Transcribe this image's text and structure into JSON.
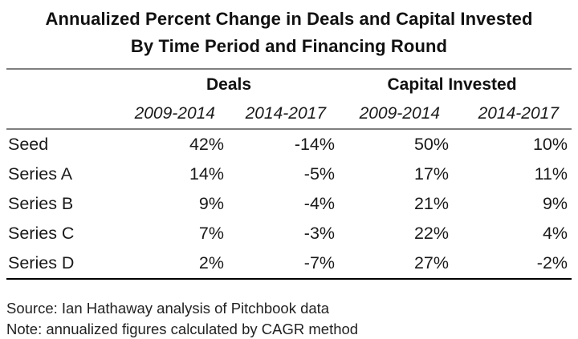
{
  "title": {
    "line1": "Annualized Percent Change in Deals and Capital Invested",
    "line2": "By Time Period and Financing Round"
  },
  "table": {
    "group_headers": {
      "deals": "Deals",
      "capital": "Capital Invested"
    },
    "period_headers": [
      "2009-2014",
      "2014-2017",
      "2009-2014",
      "2014-2017"
    ],
    "rows": [
      {
        "label": "Seed",
        "values": [
          "42%",
          "-14%",
          "50%",
          "10%"
        ]
      },
      {
        "label": "Series A",
        "values": [
          "14%",
          "-5%",
          "17%",
          "11%"
        ]
      },
      {
        "label": "Series B",
        "values": [
          "9%",
          "-4%",
          "21%",
          "9%"
        ]
      },
      {
        "label": "Series C",
        "values": [
          "7%",
          "-3%",
          "22%",
          "4%"
        ]
      },
      {
        "label": "Series D",
        "values": [
          "2%",
          "-7%",
          "27%",
          "-2%"
        ]
      }
    ]
  },
  "footer": {
    "source": "Source: Ian Hathaway analysis of Pitchbook data",
    "note": "Note: annualized figures calculated by CAGR method"
  },
  "chart_data": {
    "type": "table",
    "title": "Annualized Percent Change in Deals and Capital Invested By Time Period and Financing Round",
    "column_groups": [
      "Deals",
      "Capital Invested"
    ],
    "columns": [
      "Deals 2009-2014",
      "Deals 2014-2017",
      "Capital Invested 2009-2014",
      "Capital Invested 2014-2017"
    ],
    "row_labels": [
      "Seed",
      "Series A",
      "Series B",
      "Series C",
      "Series D"
    ],
    "values_percent": [
      [
        42,
        -14,
        50,
        10
      ],
      [
        14,
        -5,
        17,
        11
      ],
      [
        9,
        -4,
        21,
        9
      ],
      [
        7,
        -3,
        22,
        4
      ],
      [
        2,
        -7,
        27,
        -2
      ]
    ],
    "source": "Ian Hathaway analysis of Pitchbook data",
    "note": "Annualized figures calculated by CAGR method"
  },
  "colors": {
    "background": "#ffffff",
    "text": "#1a1a1a",
    "rule_gray": "#7f7f7f",
    "rule_black": "#000000"
  }
}
